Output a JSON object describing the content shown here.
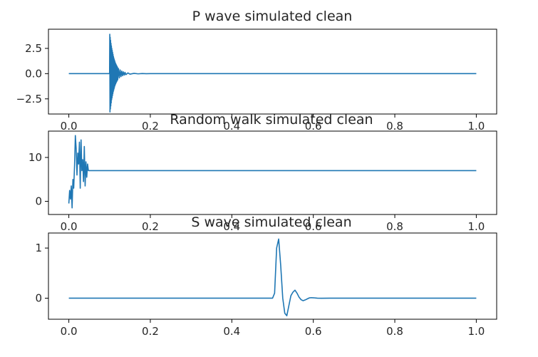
{
  "chart_data": [
    {
      "type": "line",
      "title": "P wave simulated clean",
      "xlabel": "",
      "ylabel": "",
      "xlim": [
        -0.05,
        1.05
      ],
      "ylim": [
        -4.0,
        4.4
      ],
      "xticks": [
        0.0,
        0.2,
        0.4,
        0.6,
        0.8,
        1.0
      ],
      "xtick_labels": [
        "0.0",
        "0.2",
        "0.4",
        "0.6",
        "0.8",
        "1.0"
      ],
      "yticks": [
        2.5,
        0.0,
        -2.5
      ],
      "ytick_labels": [
        "2.5",
        "0.0",
        "−2.5"
      ],
      "grid": false,
      "color": "#1f77b4",
      "series": [
        {
          "x": [
            0.0,
            0.1,
            0.1005,
            0.101,
            0.1015,
            0.102,
            0.1025,
            0.103,
            0.1035,
            0.104,
            0.1045,
            0.105,
            0.1055,
            0.106,
            0.1065,
            0.107,
            0.1075,
            0.108,
            0.1085,
            0.109,
            0.1095,
            0.11,
            0.1105,
            0.111,
            0.1115,
            0.112,
            0.1125,
            0.113,
            0.1135,
            0.114,
            0.1145,
            0.115,
            0.1155,
            0.116,
            0.1165,
            0.117,
            0.1175,
            0.118,
            0.1185,
            0.119,
            0.1195,
            0.12,
            0.122,
            0.124,
            0.126,
            0.128,
            0.13,
            0.132,
            0.134,
            0.136,
            0.138,
            0.14,
            0.145,
            0.15,
            0.16,
            0.17,
            0.18,
            0.19,
            0.2,
            1.0
          ],
          "y": [
            0.0,
            0.0,
            3.9,
            -3.8,
            3.6,
            -3.5,
            3.3,
            -3.2,
            3.0,
            -2.9,
            2.75,
            -2.6,
            2.5,
            -2.4,
            2.3,
            -2.2,
            2.1,
            -2.0,
            1.9,
            -1.8,
            1.7,
            -1.65,
            1.55,
            -1.5,
            1.4,
            -1.35,
            1.28,
            -1.2,
            1.15,
            -1.1,
            1.03,
            -1.0,
            0.95,
            -0.9,
            0.86,
            -0.82,
            0.78,
            -0.74,
            0.7,
            -0.67,
            0.63,
            -0.6,
            0.5,
            -0.42,
            0.36,
            -0.3,
            0.25,
            -0.21,
            0.18,
            -0.15,
            0.12,
            -0.1,
            0.07,
            -0.05,
            0.03,
            -0.02,
            0.01,
            -0.005,
            0.0,
            0.0
          ]
        }
      ]
    },
    {
      "type": "line",
      "title": "Random walk simulated clean",
      "xlabel": "",
      "ylabel": "",
      "xlim": [
        -0.05,
        1.05
      ],
      "ylim": [
        -3.0,
        16.0
      ],
      "xticks": [
        0.0,
        0.2,
        0.4,
        0.6,
        0.8,
        1.0
      ],
      "xtick_labels": [
        "0.0",
        "0.2",
        "0.4",
        "0.6",
        "0.8",
        "1.0"
      ],
      "yticks": [
        10,
        0
      ],
      "ytick_labels": [
        "10",
        "0"
      ],
      "grid": false,
      "color": "#1f77b4",
      "series": [
        {
          "x": [
            0.0,
            0.002,
            0.004,
            0.006,
            0.008,
            0.01,
            0.012,
            0.014,
            0.016,
            0.018,
            0.02,
            0.022,
            0.024,
            0.026,
            0.028,
            0.03,
            0.032,
            0.034,
            0.036,
            0.038,
            0.04,
            0.042,
            0.044,
            0.046,
            0.048,
            0.05,
            1.0
          ],
          "y": [
            -0.5,
            2.5,
            0.5,
            3.5,
            -1.5,
            5.0,
            3.0,
            8.0,
            15.0,
            12.0,
            6.0,
            11.0,
            8.5,
            13.5,
            3.0,
            14.0,
            7.0,
            9.5,
            4.5,
            12.5,
            3.5,
            9.0,
            5.5,
            8.5,
            7.0,
            7.0,
            7.0
          ]
        }
      ]
    },
    {
      "type": "line",
      "title": "S wave simulated clean",
      "xlabel": "",
      "ylabel": "",
      "xlim": [
        -0.05,
        1.05
      ],
      "ylim": [
        -0.42,
        1.3
      ],
      "xticks": [
        0.0,
        0.2,
        0.4,
        0.6,
        0.8,
        1.0
      ],
      "xtick_labels": [
        "0.0",
        "0.2",
        "0.4",
        "0.6",
        "0.8",
        "1.0"
      ],
      "yticks": [
        1,
        0
      ],
      "ytick_labels": [
        "1",
        "0"
      ],
      "grid": false,
      "color": "#1f77b4",
      "series": [
        {
          "x": [
            0.0,
            0.5,
            0.505,
            0.51,
            0.515,
            0.52,
            0.525,
            0.53,
            0.535,
            0.54,
            0.545,
            0.55,
            0.555,
            0.56,
            0.565,
            0.57,
            0.575,
            0.58,
            0.585,
            0.59,
            0.595,
            0.6,
            0.61,
            0.62,
            0.64,
            1.0
          ],
          "y": [
            0.0,
            0.0,
            0.1,
            1.0,
            1.18,
            0.65,
            0.0,
            -0.3,
            -0.35,
            -0.15,
            0.05,
            0.12,
            0.16,
            0.1,
            0.02,
            -0.03,
            -0.05,
            -0.035,
            -0.015,
            0.005,
            0.01,
            0.008,
            0.0,
            -0.002,
            0.0,
            0.0
          ]
        }
      ]
    }
  ]
}
